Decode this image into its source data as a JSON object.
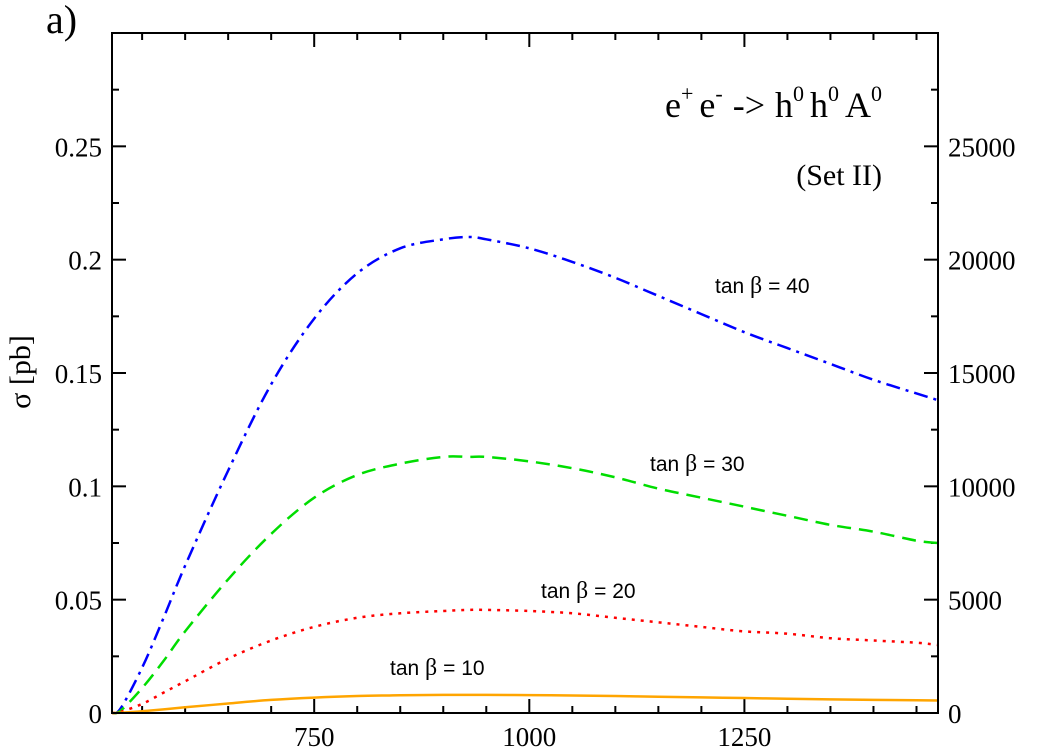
{
  "chart_data": {
    "type": "line",
    "panel_label": "a)",
    "ylabel": "σ [pb]",
    "title_parts": {
      "e": "e",
      "plus": "+",
      "e2": "e",
      "minus": "-",
      "arrow": "->",
      "h1": "h",
      "sup1": "0",
      "h2": "h",
      "sup2": "0",
      "A": "A",
      "sup3": "0"
    },
    "subtitle": "(Set II)",
    "xlim": [
      515,
      1475
    ],
    "ylim": [
      0,
      0.3
    ],
    "ylim_right": [
      0,
      30000
    ],
    "x_ticks": [
      750,
      1000,
      1250
    ],
    "x_tick_labels": [
      "750",
      "1000",
      "1250"
    ],
    "y_ticks": [
      0,
      0.05,
      0.1,
      0.15,
      0.2,
      0.25
    ],
    "y_tick_labels": [
      "0",
      "0.05",
      "0.1",
      "0.15",
      "0.2",
      "0.25"
    ],
    "y_right_ticks": [
      0,
      5000,
      10000,
      15000,
      20000,
      25000
    ],
    "y_right_tick_labels": [
      "0",
      "5000",
      "10000",
      "15000",
      "20000",
      "25000"
    ],
    "x": [
      515,
      525,
      550,
      575,
      600,
      650,
      700,
      750,
      800,
      850,
      900,
      930,
      950,
      1000,
      1050,
      1100,
      1150,
      1200,
      1250,
      1300,
      1350,
      1400,
      1450,
      1475
    ],
    "series": [
      {
        "name": "tan β = 40",
        "label_parts": {
          "tan": "tan",
          "beta": "β",
          "eq": "= 40"
        },
        "color": "#0000ff",
        "dash": "dashdot",
        "values": [
          0,
          0.002,
          0.02,
          0.042,
          0.065,
          0.107,
          0.145,
          0.174,
          0.194,
          0.205,
          0.209,
          0.21,
          0.209,
          0.205,
          0.199,
          0.192,
          0.184,
          0.176,
          0.168,
          0.161,
          0.154,
          0.147,
          0.141,
          0.138
        ]
      },
      {
        "name": "tan β = 30",
        "label_parts": {
          "tan": "tan",
          "beta": "β",
          "eq": "= 30"
        },
        "color": "#00dd00",
        "dash": "dashed",
        "values": [
          0,
          0.001,
          0.011,
          0.023,
          0.036,
          0.059,
          0.079,
          0.095,
          0.105,
          0.11,
          0.113,
          0.113,
          0.113,
          0.111,
          0.108,
          0.104,
          0.099,
          0.095,
          0.091,
          0.087,
          0.083,
          0.08,
          0.076,
          0.075
        ]
      },
      {
        "name": "tan β = 20",
        "label_parts": {
          "tan": "tan",
          "beta": "β",
          "eq": "= 20"
        },
        "color": "#ff0000",
        "dash": "dotted",
        "values": [
          0,
          0.0005,
          0.004,
          0.009,
          0.014,
          0.024,
          0.032,
          0.038,
          0.042,
          0.044,
          0.045,
          0.0455,
          0.0455,
          0.045,
          0.044,
          0.042,
          0.04,
          0.038,
          0.036,
          0.035,
          0.033,
          0.032,
          0.031,
          0.03
        ]
      },
      {
        "name": "tan β = 10",
        "label_parts": {
          "tan": "tan",
          "beta": "β",
          "eq": "= 10"
        },
        "color": "#ffa500",
        "dash": "solid",
        "values": [
          0,
          0.0001,
          0.0008,
          0.0016,
          0.0025,
          0.0042,
          0.0058,
          0.0068,
          0.0075,
          0.0078,
          0.008,
          0.008,
          0.008,
          0.0079,
          0.0077,
          0.0075,
          0.0072,
          0.0069,
          0.0066,
          0.0063,
          0.006,
          0.0058,
          0.0056,
          0.0055
        ]
      }
    ]
  }
}
